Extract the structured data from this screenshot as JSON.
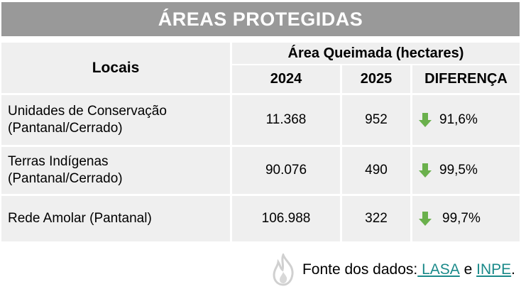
{
  "title": "ÁREAS PROTEGIDAS",
  "header": {
    "locais": "Locais",
    "area_group": "Área Queimada (hectares)",
    "col_2024": "2024",
    "col_2025": "2025",
    "col_diff": "DIFERENÇA"
  },
  "rows": [
    {
      "local_line1": "Unidades de Conservação",
      "local_line2": "(Pantanal/Cerrado)",
      "v2024": "11.368",
      "v2025": "952",
      "diff": "91,6%"
    },
    {
      "local_line1": "Terras Indígenas",
      "local_line2": "(Pantanal/Cerrado)",
      "v2024": "90.076",
      "v2025": "490",
      "diff": "99,5%"
    },
    {
      "local_line1": "Rede Amolar (Pantanal)",
      "local_line2": "",
      "v2024": "106.988",
      "v2025": "322",
      "diff": "99,7%"
    }
  ],
  "footer": {
    "prefix": "Fonte dos dados:",
    "link1": " LASA",
    "conj": " e ",
    "link2": "INPE",
    "suffix": "."
  },
  "colors": {
    "header_bar": "#999999",
    "cell_bg": "#efefef",
    "arrow_green": "#6ab04c",
    "link": "#1b8a8a"
  },
  "icons": {
    "diff_arrow": "arrow-down-icon",
    "footer": "flame-icon"
  }
}
